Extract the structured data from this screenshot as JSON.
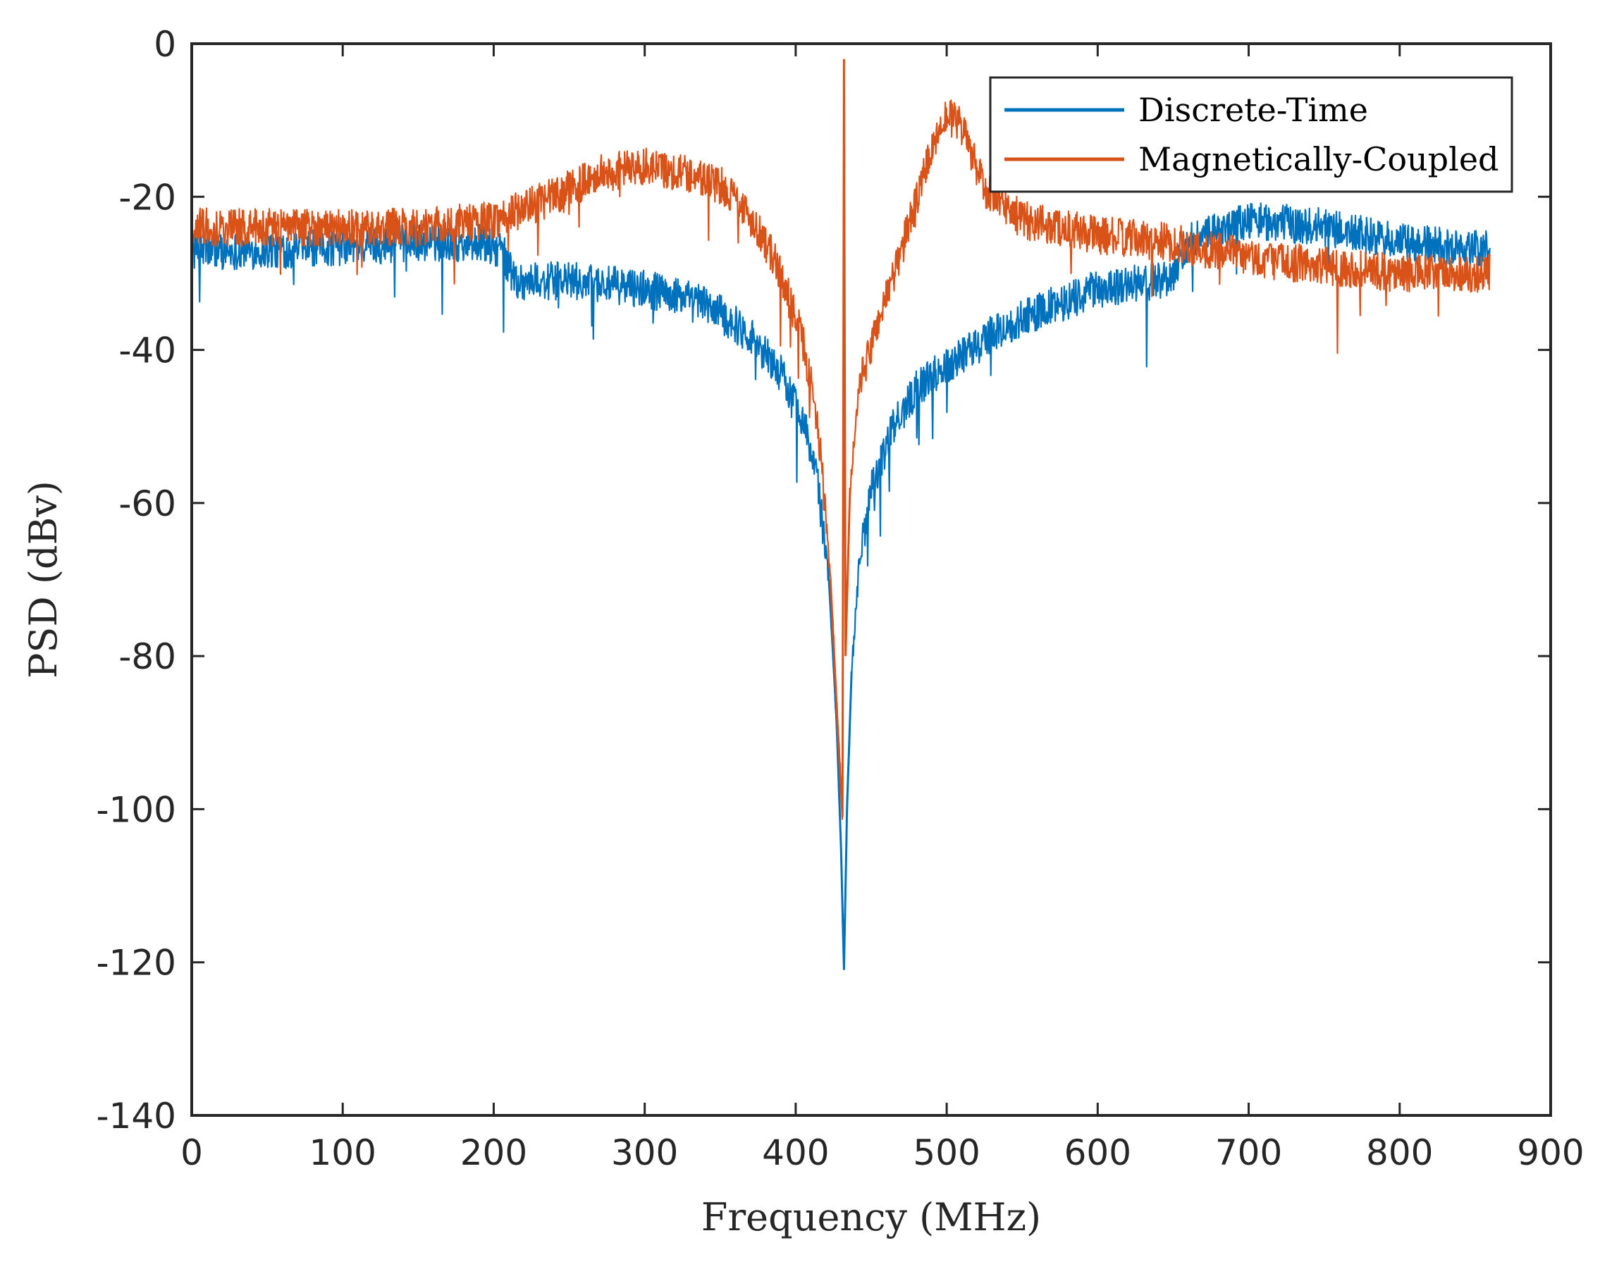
{
  "chart_data": {
    "type": "line",
    "title": "",
    "xlabel": "Frequency (MHz)",
    "ylabel": "PSD (dBv)",
    "xlim": [
      0,
      900
    ],
    "ylim": [
      -140,
      0
    ],
    "xticks": [
      0,
      100,
      200,
      300,
      400,
      500,
      600,
      700,
      800,
      900
    ],
    "yticks": [
      0,
      -20,
      -40,
      -60,
      -80,
      -100,
      -120,
      -140
    ],
    "grid": false,
    "legend_position": "top-right",
    "series": [
      {
        "name": "Discrete-Time",
        "color": "#0072BD",
        "noise_db": 2.5,
        "points": [
          [
            0,
            -27
          ],
          [
            50,
            -27
          ],
          [
            100,
            -26.5
          ],
          [
            150,
            -26
          ],
          [
            190,
            -26
          ],
          [
            205,
            -27
          ],
          [
            215,
            -31
          ],
          [
            250,
            -31
          ],
          [
            300,
            -32
          ],
          [
            340,
            -34
          ],
          [
            370,
            -38
          ],
          [
            390,
            -43
          ],
          [
            405,
            -49
          ],
          [
            415,
            -58
          ],
          [
            422,
            -70
          ],
          [
            427,
            -88
          ],
          [
            430,
            -105
          ],
          [
            432,
            -121
          ],
          [
            434,
            -100
          ],
          [
            437,
            -82
          ],
          [
            442,
            -68
          ],
          [
            450,
            -58
          ],
          [
            465,
            -50
          ],
          [
            480,
            -45
          ],
          [
            500,
            -42
          ],
          [
            530,
            -38
          ],
          [
            560,
            -35
          ],
          [
            600,
            -32
          ],
          [
            640,
            -31
          ],
          [
            650,
            -30
          ],
          [
            660,
            -26
          ],
          [
            700,
            -23
          ],
          [
            750,
            -24
          ],
          [
            800,
            -26
          ],
          [
            860,
            -27
          ]
        ]
      },
      {
        "name": "Magnetically-Coupled",
        "color": "#D95319",
        "noise_db": 2.5,
        "points": [
          [
            0,
            -24
          ],
          [
            50,
            -24
          ],
          [
            100,
            -24
          ],
          [
            150,
            -24
          ],
          [
            200,
            -23
          ],
          [
            240,
            -20
          ],
          [
            270,
            -17
          ],
          [
            300,
            -16
          ],
          [
            330,
            -17
          ],
          [
            355,
            -19
          ],
          [
            375,
            -24
          ],
          [
            390,
            -30
          ],
          [
            405,
            -39
          ],
          [
            415,
            -50
          ],
          [
            423,
            -70
          ],
          [
            428,
            -90
          ],
          [
            431,
            -101
          ],
          [
            432,
            -2
          ],
          [
            433,
            -80
          ],
          [
            436,
            -58
          ],
          [
            442,
            -45
          ],
          [
            455,
            -36
          ],
          [
            470,
            -27
          ],
          [
            485,
            -17
          ],
          [
            498,
            -9
          ],
          [
            510,
            -11
          ],
          [
            525,
            -19
          ],
          [
            550,
            -23
          ],
          [
            600,
            -25
          ],
          [
            650,
            -26
          ],
          [
            700,
            -28
          ],
          [
            750,
            -29
          ],
          [
            800,
            -30
          ],
          [
            860,
            -30
          ]
        ]
      }
    ]
  }
}
